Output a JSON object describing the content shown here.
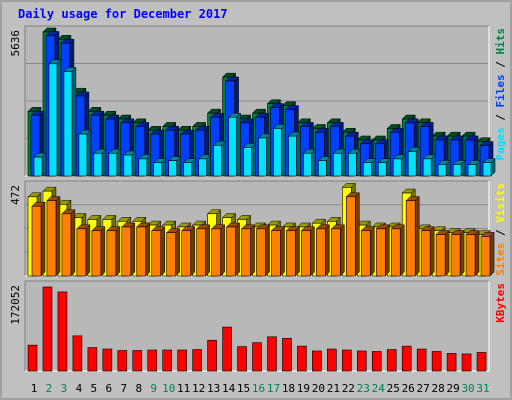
{
  "chart_data": [
    {
      "type": "bar",
      "title": "Daily usage for December 2017",
      "panel": "top",
      "categories": [
        "1",
        "2",
        "3",
        "4",
        "5",
        "6",
        "7",
        "8",
        "9",
        "10",
        "11",
        "12",
        "13",
        "14",
        "15",
        "16",
        "17",
        "18",
        "19",
        "20",
        "21",
        "22",
        "23",
        "24",
        "25",
        "26",
        "27",
        "28",
        "29",
        "30",
        "31"
      ],
      "ylim": [
        0,
        5636
      ],
      "max_label": "5636",
      "grid": true,
      "legend": {
        "position": "right",
        "separator": " / ",
        "items": [
          "Pages",
          "Files",
          "Hits"
        ]
      },
      "series": [
        {
          "name": "Hits",
          "color": "#008040",
          "values": [
            2530,
            5636,
            5350,
            3280,
            2530,
            2380,
            2230,
            2080,
            1790,
            1940,
            1790,
            1940,
            2460,
            3870,
            2230,
            2460,
            2830,
            2750,
            2080,
            1860,
            2080,
            1710,
            1410,
            1410,
            1860,
            2230,
            2080,
            1560,
            1560,
            1560,
            1340
          ]
        },
        {
          "name": "Files",
          "color": "#0040ff",
          "values": [
            2380,
            5500,
            5200,
            3130,
            2380,
            2230,
            2080,
            1940,
            1640,
            1790,
            1640,
            1790,
            2300,
            3720,
            2080,
            2300,
            2680,
            2600,
            1940,
            1710,
            1940,
            1560,
            1260,
            1260,
            1710,
            2080,
            1940,
            1410,
            1410,
            1410,
            1190
          ]
        },
        {
          "name": "Pages",
          "color": "#00e0ff",
          "values": [
            740,
            4390,
            4090,
            1640,
            890,
            890,
            820,
            670,
            520,
            600,
            520,
            670,
            1200,
            2300,
            1120,
            1490,
            1860,
            1560,
            890,
            600,
            890,
            890,
            520,
            520,
            670,
            960,
            670,
            450,
            450,
            450,
            520
          ]
        }
      ]
    },
    {
      "type": "bar",
      "panel": "middle",
      "categories": [
        "1",
        "2",
        "3",
        "4",
        "5",
        "6",
        "7",
        "8",
        "9",
        "10",
        "11",
        "12",
        "13",
        "14",
        "15",
        "16",
        "17",
        "18",
        "19",
        "20",
        "21",
        "22",
        "23",
        "24",
        "25",
        "26",
        "27",
        "28",
        "29",
        "30",
        "31"
      ],
      "ylim": [
        0,
        472
      ],
      "max_label": "472",
      "grid": true,
      "legend": {
        "position": "right",
        "separator": " / ",
        "items": [
          "Sites",
          "Visits"
        ]
      },
      "series": [
        {
          "name": "Visits",
          "color": "#ffff00",
          "values": [
            420,
            450,
            380,
            310,
            300,
            300,
            290,
            290,
            270,
            270,
            260,
            270,
            330,
            310,
            300,
            260,
            270,
            260,
            260,
            280,
            290,
            470,
            270,
            260,
            260,
            440,
            250,
            240,
            230,
            230,
            220
          ]
        },
        {
          "name": "Sites",
          "color": "#ff8000",
          "values": [
            370,
            400,
            330,
            250,
            240,
            240,
            260,
            260,
            240,
            230,
            240,
            250,
            250,
            260,
            250,
            250,
            240,
            240,
            240,
            250,
            250,
            420,
            240,
            250,
            250,
            400,
            240,
            220,
            220,
            220,
            210
          ]
        }
      ]
    },
    {
      "type": "bar",
      "panel": "bottom",
      "categories": [
        "1",
        "2",
        "3",
        "4",
        "5",
        "6",
        "7",
        "8",
        "9",
        "10",
        "11",
        "12",
        "13",
        "14",
        "15",
        "16",
        "17",
        "18",
        "19",
        "20",
        "21",
        "22",
        "23",
        "24",
        "25",
        "26",
        "27",
        "28",
        "29",
        "30",
        "31"
      ],
      "ylim": [
        0,
        172052
      ],
      "max_label": "172052",
      "grid": false,
      "legend": {
        "position": "right",
        "items": [
          "KBytes"
        ]
      },
      "series": [
        {
          "name": "KBytes",
          "color": "#ff0000",
          "values": [
            53000,
            172052,
            162000,
            72000,
            48000,
            45000,
            42000,
            42000,
            43000,
            43000,
            43000,
            44000,
            63000,
            90000,
            50000,
            58000,
            70000,
            67000,
            51000,
            41000,
            45000,
            43000,
            41000,
            40000,
            44000,
            51000,
            45000,
            40000,
            36000,
            35000,
            38000
          ]
        }
      ]
    }
  ],
  "x_axis": {
    "labels": [
      "1",
      "2",
      "3",
      "4",
      "5",
      "6",
      "7",
      "8",
      "9",
      "10",
      "11",
      "12",
      "13",
      "14",
      "15",
      "16",
      "17",
      "18",
      "19",
      "20",
      "21",
      "22",
      "23",
      "24",
      "25",
      "26",
      "27",
      "28",
      "29",
      "30",
      "31"
    ],
    "weekend_days": [
      "2",
      "3",
      "9",
      "10",
      "16",
      "17",
      "23",
      "24",
      "30",
      "31"
    ],
    "weekday_color": "#000000",
    "weekend_color": "#00805c"
  },
  "colors": {
    "background": "#c0c0c0",
    "plot_bg": "#b8b8b8",
    "title_color": "#0000ff",
    "legend_sep_color": "#000000"
  }
}
